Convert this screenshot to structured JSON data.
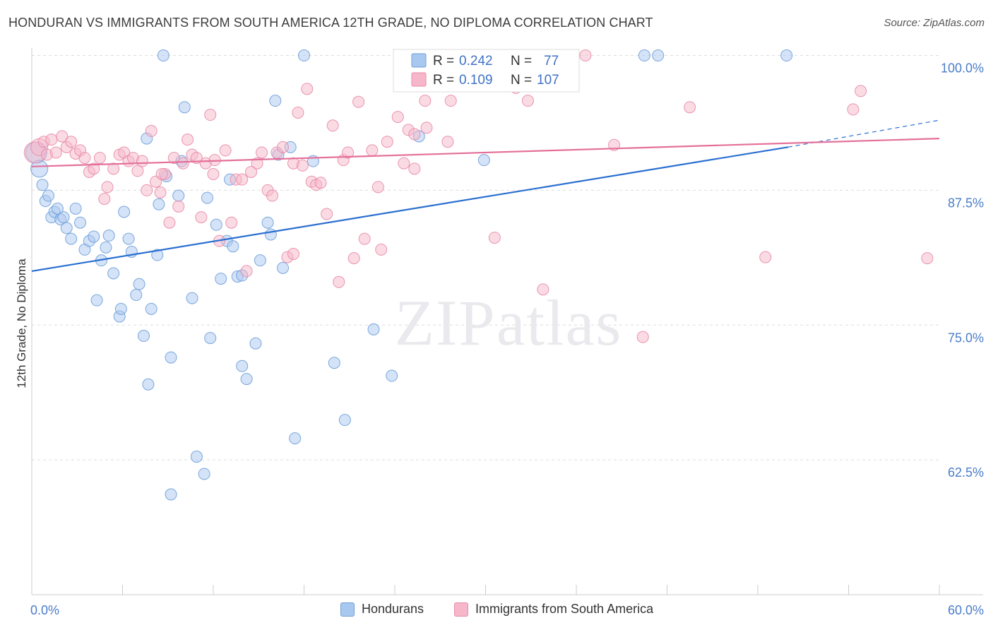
{
  "header": {
    "title": "HONDURAN VS IMMIGRANTS FROM SOUTH AMERICA 12TH GRADE, NO DIPLOMA CORRELATION CHART",
    "source": "Source: ZipAtlas.com"
  },
  "watermark": "ZIPatlas",
  "colors": {
    "blue_fill": "#a9c8f0",
    "blue_stroke": "#6e9fd8",
    "blue_line": "#2a6fd0",
    "pink_fill": "#f6b7ca",
    "pink_stroke": "#e88aa8",
    "pink_line": "#e4709a",
    "tick_label": "#4a7cc9",
    "grid": "#dddddd"
  },
  "stats_legend": {
    "rows": [
      {
        "r_label": "R =",
        "r_value": "0.242",
        "n_label": "N =",
        "n_value": "77"
      },
      {
        "r_label": "R =",
        "r_value": "0.109",
        "n_label": "N =",
        "n_value": "107"
      }
    ]
  },
  "bottom_legend": [
    {
      "label": "Hondurans"
    },
    {
      "label": "Immigrants from South America"
    }
  ],
  "chart_data": {
    "type": "scatter",
    "ylabel": "12th Grade, No Diploma",
    "xlim": [
      0,
      60
    ],
    "ylim": [
      50,
      102
    ],
    "x_tick_labels": [
      "0.0%",
      "60.0%"
    ],
    "y_ticks": [
      62.5,
      75.0,
      87.5,
      100.0
    ],
    "y_tick_labels": [
      "62.5%",
      "75.0%",
      "87.5%",
      "100.0%"
    ],
    "grid": "horizontal dashed",
    "series": [
      {
        "name": "Hondurans",
        "trend": {
          "x0": 0,
          "y0": 80.0,
          "x1": 50,
          "y1": 91.5,
          "dash_to_x": 60,
          "dash_to_y": 94.0
        },
        "points": [
          [
            0.3,
            91.0,
            3
          ],
          [
            0.5,
            89.5,
            2
          ],
          [
            0.7,
            88.0,
            1
          ],
          [
            0.9,
            86.5,
            1
          ],
          [
            1.1,
            87.0,
            1
          ],
          [
            1.3,
            85.0,
            1
          ],
          [
            1.5,
            85.5,
            1
          ],
          [
            1.7,
            85.8,
            1
          ],
          [
            1.9,
            84.8,
            1
          ],
          [
            2.1,
            85.0,
            1
          ],
          [
            2.3,
            84.0,
            1
          ],
          [
            2.6,
            83.0,
            1
          ],
          [
            2.9,
            85.8,
            1
          ],
          [
            3.2,
            84.5,
            1
          ],
          [
            3.5,
            82.0,
            1
          ],
          [
            3.8,
            82.8,
            1
          ],
          [
            4.1,
            83.2,
            1
          ],
          [
            4.3,
            77.3,
            1
          ],
          [
            4.6,
            81.0,
            1
          ],
          [
            4.9,
            82.2,
            1
          ],
          [
            5.1,
            83.3,
            1
          ],
          [
            5.4,
            79.8,
            1
          ],
          [
            5.8,
            75.8,
            1
          ],
          [
            5.9,
            76.5,
            1
          ],
          [
            6.1,
            85.5,
            1
          ],
          [
            6.4,
            83.0,
            1
          ],
          [
            6.6,
            81.8,
            1
          ],
          [
            6.9,
            77.8,
            1
          ],
          [
            7.1,
            78.8,
            1
          ],
          [
            7.4,
            74.0,
            1
          ],
          [
            7.6,
            92.3,
            1
          ],
          [
            7.7,
            69.5,
            1
          ],
          [
            7.9,
            76.5,
            1
          ],
          [
            8.3,
            81.5,
            1
          ],
          [
            8.4,
            86.2,
            1
          ],
          [
            8.9,
            88.8,
            1
          ],
          [
            9.2,
            72.0,
            1
          ],
          [
            9.7,
            87.0,
            1
          ],
          [
            9.9,
            90.2,
            1
          ],
          [
            10.1,
            95.2,
            1
          ],
          [
            10.6,
            77.5,
            1
          ],
          [
            10.9,
            62.8,
            1
          ],
          [
            11.4,
            61.2,
            1
          ],
          [
            11.6,
            86.8,
            1
          ],
          [
            11.8,
            73.8,
            1
          ],
          [
            12.2,
            84.3,
            1
          ],
          [
            12.5,
            79.3,
            1
          ],
          [
            12.9,
            82.8,
            1
          ],
          [
            13.1,
            88.5,
            1
          ],
          [
            13.3,
            82.3,
            1
          ],
          [
            13.6,
            79.5,
            1
          ],
          [
            13.9,
            79.6,
            1
          ],
          [
            13.9,
            71.2,
            1
          ],
          [
            14.2,
            70.0,
            1
          ],
          [
            14.8,
            73.3,
            1
          ],
          [
            15.1,
            81.0,
            1
          ],
          [
            15.6,
            84.5,
            1
          ],
          [
            15.8,
            83.4,
            1
          ],
          [
            16.1,
            95.8,
            1
          ],
          [
            16.3,
            90.8,
            1
          ],
          [
            16.6,
            80.3,
            1
          ],
          [
            17.1,
            91.5,
            1
          ],
          [
            17.4,
            64.5,
            1
          ],
          [
            18.0,
            100.0,
            1
          ],
          [
            18.6,
            90.2,
            1
          ],
          [
            20.0,
            71.5,
            1
          ],
          [
            20.7,
            66.2,
            1
          ],
          [
            22.6,
            74.6,
            1
          ],
          [
            23.8,
            70.3,
            1
          ],
          [
            25.6,
            92.5,
            1
          ],
          [
            29.9,
            90.3,
            1
          ],
          [
            8.7,
            100.0,
            1
          ],
          [
            9.2,
            59.3,
            1
          ],
          [
            40.5,
            100.0,
            1
          ],
          [
            41.4,
            100.0,
            1
          ],
          [
            49.9,
            100.0,
            1
          ],
          [
            27.0,
            100.0,
            1
          ]
        ]
      },
      {
        "name": "Immigrants from South America",
        "trend": {
          "x0": 0,
          "y0": 89.7,
          "x1": 60,
          "y1": 92.3
        },
        "points": [
          [
            0.2,
            91.0,
            3
          ],
          [
            0.5,
            91.5,
            2
          ],
          [
            0.8,
            92.0,
            1
          ],
          [
            1.0,
            90.8,
            1
          ],
          [
            1.3,
            92.2,
            1
          ],
          [
            1.6,
            91.0,
            1
          ],
          [
            2.0,
            92.5,
            1
          ],
          [
            2.3,
            91.5,
            1
          ],
          [
            2.6,
            92.0,
            1
          ],
          [
            2.9,
            90.9,
            1
          ],
          [
            3.2,
            91.2,
            1
          ],
          [
            3.5,
            90.5,
            1
          ],
          [
            3.8,
            89.2,
            1
          ],
          [
            4.1,
            89.5,
            1
          ],
          [
            4.5,
            90.5,
            1
          ],
          [
            4.8,
            86.7,
            1
          ],
          [
            5.0,
            87.8,
            1
          ],
          [
            5.4,
            89.5,
            1
          ],
          [
            5.8,
            90.8,
            1
          ],
          [
            6.1,
            91.0,
            1
          ],
          [
            6.4,
            90.2,
            1
          ],
          [
            6.7,
            90.5,
            1
          ],
          [
            7.0,
            89.3,
            1
          ],
          [
            7.3,
            90.2,
            1
          ],
          [
            7.6,
            87.5,
            1
          ],
          [
            7.9,
            93.0,
            1
          ],
          [
            8.2,
            88.3,
            1
          ],
          [
            8.5,
            87.3,
            1
          ],
          [
            8.8,
            89.0,
            1
          ],
          [
            9.1,
            84.5,
            1
          ],
          [
            9.4,
            90.5,
            1
          ],
          [
            9.7,
            86.0,
            1
          ],
          [
            10.0,
            90.0,
            1
          ],
          [
            10.3,
            92.2,
            1
          ],
          [
            10.6,
            90.8,
            1
          ],
          [
            10.9,
            90.5,
            1
          ],
          [
            11.2,
            85.0,
            1
          ],
          [
            11.5,
            90.0,
            1
          ],
          [
            11.8,
            94.5,
            1
          ],
          [
            12.1,
            90.3,
            1
          ],
          [
            12.4,
            82.8,
            1
          ],
          [
            12.8,
            91.2,
            1
          ],
          [
            13.2,
            84.5,
            1
          ],
          [
            13.5,
            88.5,
            1
          ],
          [
            13.9,
            88.5,
            1
          ],
          [
            14.2,
            80.0,
            1
          ],
          [
            14.5,
            89.2,
            1
          ],
          [
            14.9,
            90.0,
            1
          ],
          [
            15.2,
            91.0,
            1
          ],
          [
            15.6,
            87.5,
            1
          ],
          [
            15.9,
            87.0,
            1
          ],
          [
            16.2,
            91.0,
            1
          ],
          [
            16.6,
            91.5,
            1
          ],
          [
            16.9,
            81.3,
            1
          ],
          [
            17.3,
            90.0,
            1
          ],
          [
            17.6,
            94.7,
            1
          ],
          [
            17.9,
            89.8,
            1
          ],
          [
            18.2,
            96.9,
            1
          ],
          [
            18.5,
            88.3,
            1
          ],
          [
            18.8,
            88.0,
            1
          ],
          [
            19.1,
            88.2,
            1
          ],
          [
            19.5,
            85.3,
            1
          ],
          [
            19.9,
            93.5,
            1
          ],
          [
            20.3,
            79.0,
            1
          ],
          [
            20.6,
            90.3,
            1
          ],
          [
            20.9,
            91.0,
            1
          ],
          [
            21.3,
            81.2,
            1
          ],
          [
            21.6,
            95.7,
            1
          ],
          [
            22.0,
            83.0,
            1
          ],
          [
            22.5,
            91.2,
            1
          ],
          [
            22.9,
            87.8,
            1
          ],
          [
            23.1,
            82.0,
            1
          ],
          [
            23.5,
            92.0,
            1
          ],
          [
            24.2,
            94.3,
            1
          ],
          [
            24.6,
            90.0,
            1
          ],
          [
            24.9,
            93.1,
            1
          ],
          [
            25.3,
            89.5,
            1
          ],
          [
            25.7,
            97.5,
            1
          ],
          [
            26.0,
            95.8,
            1
          ],
          [
            26.4,
            99.5,
            1
          ],
          [
            27.1,
            97.3,
            1
          ],
          [
            27.5,
            92.0,
            1
          ],
          [
            27.7,
            95.8,
            1
          ],
          [
            28.1,
            98.8,
            1
          ],
          [
            28.7,
            100.0,
            1
          ],
          [
            29.4,
            99.3,
            1
          ],
          [
            30.1,
            98.0,
            1
          ],
          [
            30.6,
            83.1,
            1
          ],
          [
            31.2,
            99.0,
            1
          ],
          [
            32.0,
            97.0,
            1
          ],
          [
            32.8,
            95.8,
            1
          ],
          [
            33.8,
            78.3,
            1
          ],
          [
            34.4,
            98.0,
            1
          ],
          [
            35.6,
            97.2,
            1
          ],
          [
            36.6,
            100.0,
            1
          ],
          [
            38.5,
            91.7,
            1
          ],
          [
            40.4,
            73.9,
            1
          ],
          [
            43.5,
            95.2,
            1
          ],
          [
            48.5,
            81.3,
            1
          ],
          [
            54.3,
            95.0,
            1
          ],
          [
            54.8,
            96.7,
            1
          ],
          [
            59.2,
            81.2,
            1
          ],
          [
            8.6,
            89.0,
            1
          ],
          [
            12.0,
            89.0,
            1
          ],
          [
            25.3,
            92.7,
            1
          ],
          [
            17.3,
            81.6,
            1
          ],
          [
            26.1,
            93.3,
            1
          ]
        ]
      }
    ]
  }
}
